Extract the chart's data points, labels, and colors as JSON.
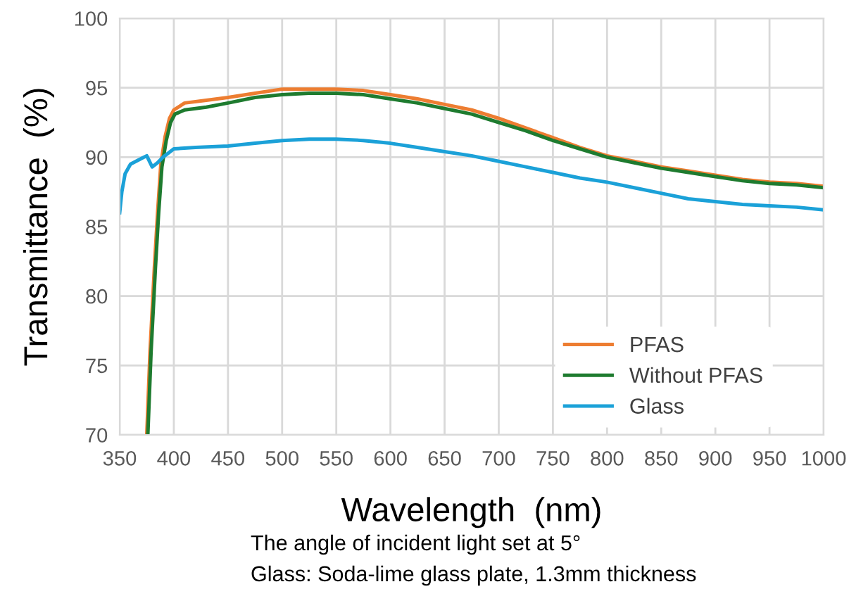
{
  "chart_data": {
    "type": "line",
    "xlabel": "Wavelength  (nm)",
    "ylabel": "Transmittance  (%)",
    "xlim": [
      350,
      1000
    ],
    "ylim": [
      70,
      100
    ],
    "xticks": [
      350,
      400,
      450,
      500,
      550,
      600,
      650,
      700,
      750,
      800,
      850,
      900,
      950,
      1000
    ],
    "yticks": [
      70,
      75,
      80,
      85,
      90,
      95,
      100
    ],
    "grid": true,
    "legend": "bottom right",
    "marker": "none",
    "line_style": "solid",
    "annotations": [
      "The angle of incident light set at 5°",
      "Glass: Soda-lime glass plate, 1.3mm thickness"
    ],
    "series": [
      {
        "name": "PFAS",
        "color": "#ed7d31",
        "x": [
          375,
          378,
          382,
          385,
          388,
          392,
          396,
          400,
          410,
          430,
          450,
          475,
          500,
          525,
          550,
          575,
          600,
          625,
          650,
          675,
          700,
          725,
          750,
          775,
          800,
          825,
          850,
          875,
          900,
          925,
          950,
          975,
          1000
        ],
        "values": [
          70,
          76,
          82,
          86,
          89.5,
          91.5,
          92.8,
          93.4,
          93.9,
          94.1,
          94.3,
          94.6,
          94.9,
          94.9,
          94.9,
          94.8,
          94.5,
          94.2,
          93.8,
          93.4,
          92.8,
          92.1,
          91.4,
          90.7,
          90.1,
          89.7,
          89.3,
          89.0,
          88.7,
          88.4,
          88.2,
          88.1,
          87.9
        ]
      },
      {
        "name": "Without PFAS",
        "color": "#1e7b2f",
        "x": [
          376,
          379,
          383,
          386,
          389,
          393,
          397,
          401,
          410,
          430,
          450,
          475,
          500,
          525,
          550,
          575,
          600,
          625,
          650,
          675,
          700,
          725,
          750,
          775,
          800,
          825,
          850,
          875,
          900,
          925,
          950,
          975,
          1000
        ],
        "values": [
          70,
          76,
          82,
          86,
          89.3,
          91.2,
          92.5,
          93.1,
          93.4,
          93.6,
          93.9,
          94.3,
          94.5,
          94.6,
          94.6,
          94.5,
          94.2,
          93.9,
          93.5,
          93.1,
          92.5,
          91.9,
          91.2,
          90.6,
          90.0,
          89.6,
          89.2,
          88.9,
          88.6,
          88.3,
          88.1,
          88.0,
          87.8
        ]
      },
      {
        "name": "Glass",
        "color": "#1ba1d8",
        "x": [
          350,
          352,
          355,
          360,
          365,
          370,
          375,
          380,
          385,
          390,
          395,
          400,
          420,
          450,
          475,
          500,
          525,
          550,
          575,
          600,
          625,
          650,
          675,
          700,
          725,
          750,
          775,
          800,
          825,
          850,
          875,
          900,
          925,
          950,
          975,
          1000
        ],
        "values": [
          86,
          87.5,
          88.8,
          89.5,
          89.7,
          89.9,
          90.1,
          89.3,
          89.6,
          90.0,
          90.3,
          90.6,
          90.7,
          90.8,
          91.0,
          91.2,
          91.3,
          91.3,
          91.2,
          91.0,
          90.7,
          90.4,
          90.1,
          89.7,
          89.3,
          88.9,
          88.5,
          88.2,
          87.8,
          87.4,
          87.0,
          86.8,
          86.6,
          86.5,
          86.4,
          86.2
        ]
      }
    ]
  }
}
